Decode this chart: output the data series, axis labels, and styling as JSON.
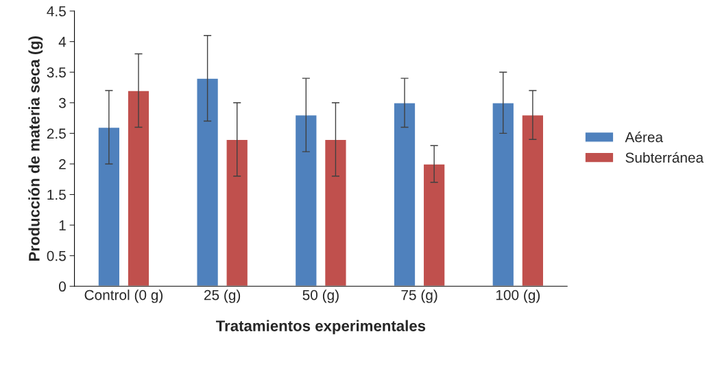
{
  "chart_data": {
    "type": "bar",
    "xlabel": "Tratamientos experimentales",
    "ylabel": "Producción de materia seca (g)",
    "categories": [
      "Control (0 g)",
      "25 (g)",
      "50 (g)",
      "75 (g)",
      "100 (g)"
    ],
    "series": [
      {
        "name": "Aérea",
        "color": "#4f81bd",
        "values": [
          2.6,
          3.4,
          2.8,
          3.0,
          3.0
        ],
        "errors": [
          0.6,
          0.7,
          0.6,
          0.4,
          0.5
        ]
      },
      {
        "name": "Subterránea",
        "color": "#c0504d",
        "values": [
          3.2,
          2.4,
          2.4,
          2.0,
          2.8
        ],
        "errors": [
          0.6,
          0.6,
          0.6,
          0.3,
          0.4
        ]
      }
    ],
    "ylim": [
      0,
      4.5
    ],
    "yticks": [
      0,
      0.5,
      1,
      1.5,
      2,
      2.5,
      3,
      3.5,
      4,
      4.5
    ],
    "grid": false,
    "legend": "right"
  }
}
